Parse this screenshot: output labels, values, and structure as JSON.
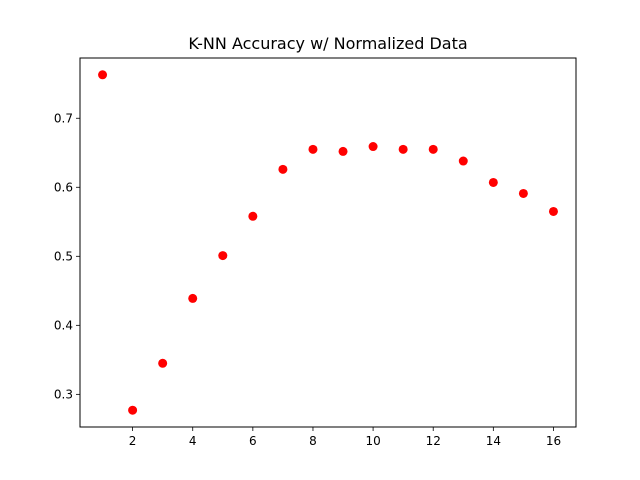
{
  "chart_data": {
    "type": "scatter",
    "title": "K-NN Accuracy w/ Normalized Data",
    "xlabel": "",
    "ylabel": "",
    "x": [
      1,
      2,
      3,
      4,
      5,
      6,
      7,
      8,
      9,
      10,
      11,
      12,
      13,
      14,
      15,
      16
    ],
    "series": [
      {
        "values": [
          0.763,
          0.277,
          0.345,
          0.439,
          0.501,
          0.558,
          0.626,
          0.655,
          0.652,
          0.659,
          0.655,
          0.655,
          0.638,
          0.607,
          0.591,
          0.565
        ],
        "color": "#ff0000"
      }
    ],
    "xlim": [
      0.25,
      16.75
    ],
    "ylim": [
      0.2527,
      0.7873
    ],
    "xticks": [
      2,
      4,
      6,
      8,
      10,
      12,
      14,
      16
    ],
    "yticks": [
      0.3,
      0.4,
      0.5,
      0.6,
      0.7
    ],
    "grid": false,
    "legend": "none"
  }
}
